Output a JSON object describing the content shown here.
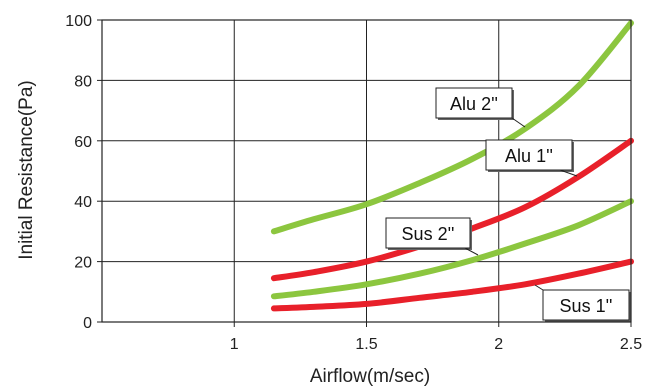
{
  "chart_data": {
    "type": "line",
    "title": "",
    "xlabel": "Airflow(m/sec)",
    "ylabel": "Initial Resistance(Pa)",
    "xlim": [
      0.5,
      2.5
    ],
    "ylim": [
      0,
      100
    ],
    "x_ticks": [
      "1",
      "1.5",
      "2",
      "2.5"
    ],
    "y_ticks": [
      "0",
      "20",
      "40",
      "60",
      "80",
      "100"
    ],
    "grid": true,
    "series": [
      {
        "name": "Alu 2''",
        "color": "#8cc63f",
        "x": [
          1.15,
          1.3,
          1.5,
          1.7,
          1.9,
          2.1,
          2.3,
          2.5
        ],
        "y": [
          30,
          34,
          39,
          46,
          54,
          64,
          78,
          99
        ]
      },
      {
        "name": "Alu 1''",
        "color": "#e8202a",
        "x": [
          1.15,
          1.3,
          1.5,
          1.7,
          1.9,
          2.1,
          2.3,
          2.5
        ],
        "y": [
          14.5,
          16.5,
          20,
          25,
          31,
          38,
          48,
          60
        ]
      },
      {
        "name": "Sus 2''",
        "color": "#8cc63f",
        "x": [
          1.15,
          1.3,
          1.5,
          1.7,
          1.9,
          2.1,
          2.3,
          2.5
        ],
        "y": [
          8.5,
          10,
          12.5,
          16,
          20.5,
          26,
          32,
          40
        ]
      },
      {
        "name": "Sus 1''",
        "color": "#e8202a",
        "x": [
          1.15,
          1.3,
          1.5,
          1.7,
          1.9,
          2.1,
          2.3,
          2.5
        ],
        "y": [
          4.5,
          5,
          6,
          8,
          10,
          12.5,
          16,
          20
        ]
      }
    ],
    "annotations": [
      {
        "label": "Alu 2''",
        "series": 0
      },
      {
        "label": "Alu 1''",
        "series": 1
      },
      {
        "label": "Sus 2''",
        "series": 2
      },
      {
        "label": "Sus 1''",
        "series": 3
      }
    ]
  }
}
